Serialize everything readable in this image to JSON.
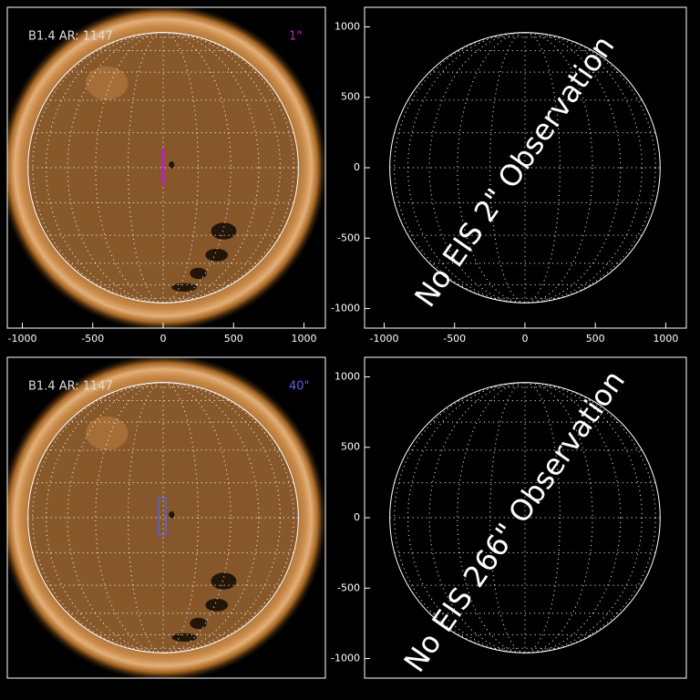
{
  "panels": [
    {
      "label": "B1.4 AR: 1147",
      "slit": "1\"",
      "slit_color": "#c020c0",
      "xlim": [
        -1107,
        1152
      ],
      "ylim": [
        -1139,
        1139
      ],
      "xticks": [
        -1000,
        -500,
        0,
        500,
        1000
      ]
    },
    {
      "message": "No EIS 2\" Observation",
      "xlim": [
        -1139,
        1146
      ],
      "ylim": [
        -1139,
        1139
      ],
      "xticks": [
        -1000,
        -500,
        0,
        500,
        1000
      ],
      "yticks": [
        -1000,
        -500,
        0,
        500,
        1000
      ]
    },
    {
      "label": "B1.4 AR: 1147",
      "slit": "40\"",
      "slit_color": "#6060e0",
      "xlim": [
        -1107,
        1152
      ],
      "ylim": [
        -1139,
        1139
      ]
    },
    {
      "message": "No EIS 266\" Observation",
      "xlim": [
        -1139,
        1146
      ],
      "ylim": [
        -1139,
        1139
      ],
      "yticks": [
        -1000,
        -500,
        0,
        500,
        1000
      ]
    }
  ]
}
